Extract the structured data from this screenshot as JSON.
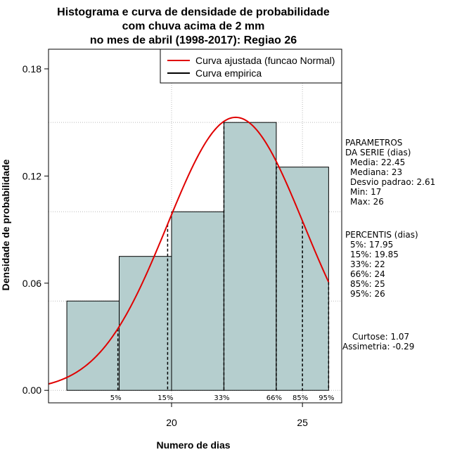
{
  "chart_data": {
    "type": "bar",
    "title_lines": [
      "Histograma e curva de densidade de probabilidade",
      "com chuva acima de 2 mm",
      "no mes de abril (1998-2017): Regiao 26"
    ],
    "xlabel": "Numero de dias",
    "ylabel": "Densidade de probabilidade",
    "xlim": [
      15.3,
      26.5
    ],
    "ylim": [
      -0.007,
      0.191
    ],
    "x_ticks": [
      20,
      25
    ],
    "y_ticks": [
      0.0,
      0.06,
      0.12,
      0.18
    ],
    "y_tick_labels": [
      "0.00",
      "0.06",
      "0.12",
      "0.18"
    ],
    "bins": [
      {
        "start": 16,
        "end": 18,
        "density": 0.05
      },
      {
        "start": 18,
        "end": 20,
        "density": 0.075
      },
      {
        "start": 20,
        "end": 22,
        "density": 0.1
      },
      {
        "start": 22,
        "end": 24,
        "density": 0.15
      },
      {
        "start": 24,
        "end": 26,
        "density": 0.125
      }
    ],
    "gridlines_y": [
      0.05,
      0.1,
      0.15
    ],
    "gridlines_x": [
      20,
      25
    ],
    "normal_curve": {
      "mean": 22.45,
      "sd": 2.61,
      "x_from": 15.3,
      "x_to": 26.0
    },
    "percentiles": [
      {
        "label": "5%",
        "value": 17.95
      },
      {
        "label": "15%",
        "value": 19.85
      },
      {
        "label": "33%",
        "value": 22
      },
      {
        "label": "66%",
        "value": 24
      },
      {
        "label": "85%",
        "value": 25
      },
      {
        "label": "95%",
        "value": 26
      }
    ],
    "legend": [
      {
        "label": "Curva ajustada (funcao Normal)",
        "color": "#e00000"
      },
      {
        "label": "Curva empirica",
        "color": "#000000"
      }
    ],
    "legend_position": "top-right",
    "stats_block_1": [
      "PARAMETROS",
      "DA SERIE (dias)",
      "Media: 22.45",
      "Mediana: 23",
      "Desvio padrao: 2.61",
      "Min: 17",
      "Max: 26"
    ],
    "stats_block_2": [
      "PERCENTIS (dias)",
      "5%: 17.95",
      "15%: 19.85",
      "33%: 22",
      "66%: 24",
      "85%: 25",
      "95%: 26"
    ],
    "stats_block_3": [
      "Curtose: 1.07",
      "Assimetria: -0.29"
    ],
    "colors": {
      "bar_fill": "#b5cece",
      "curve": "#e00000",
      "grid": "#bbbbbb"
    }
  }
}
